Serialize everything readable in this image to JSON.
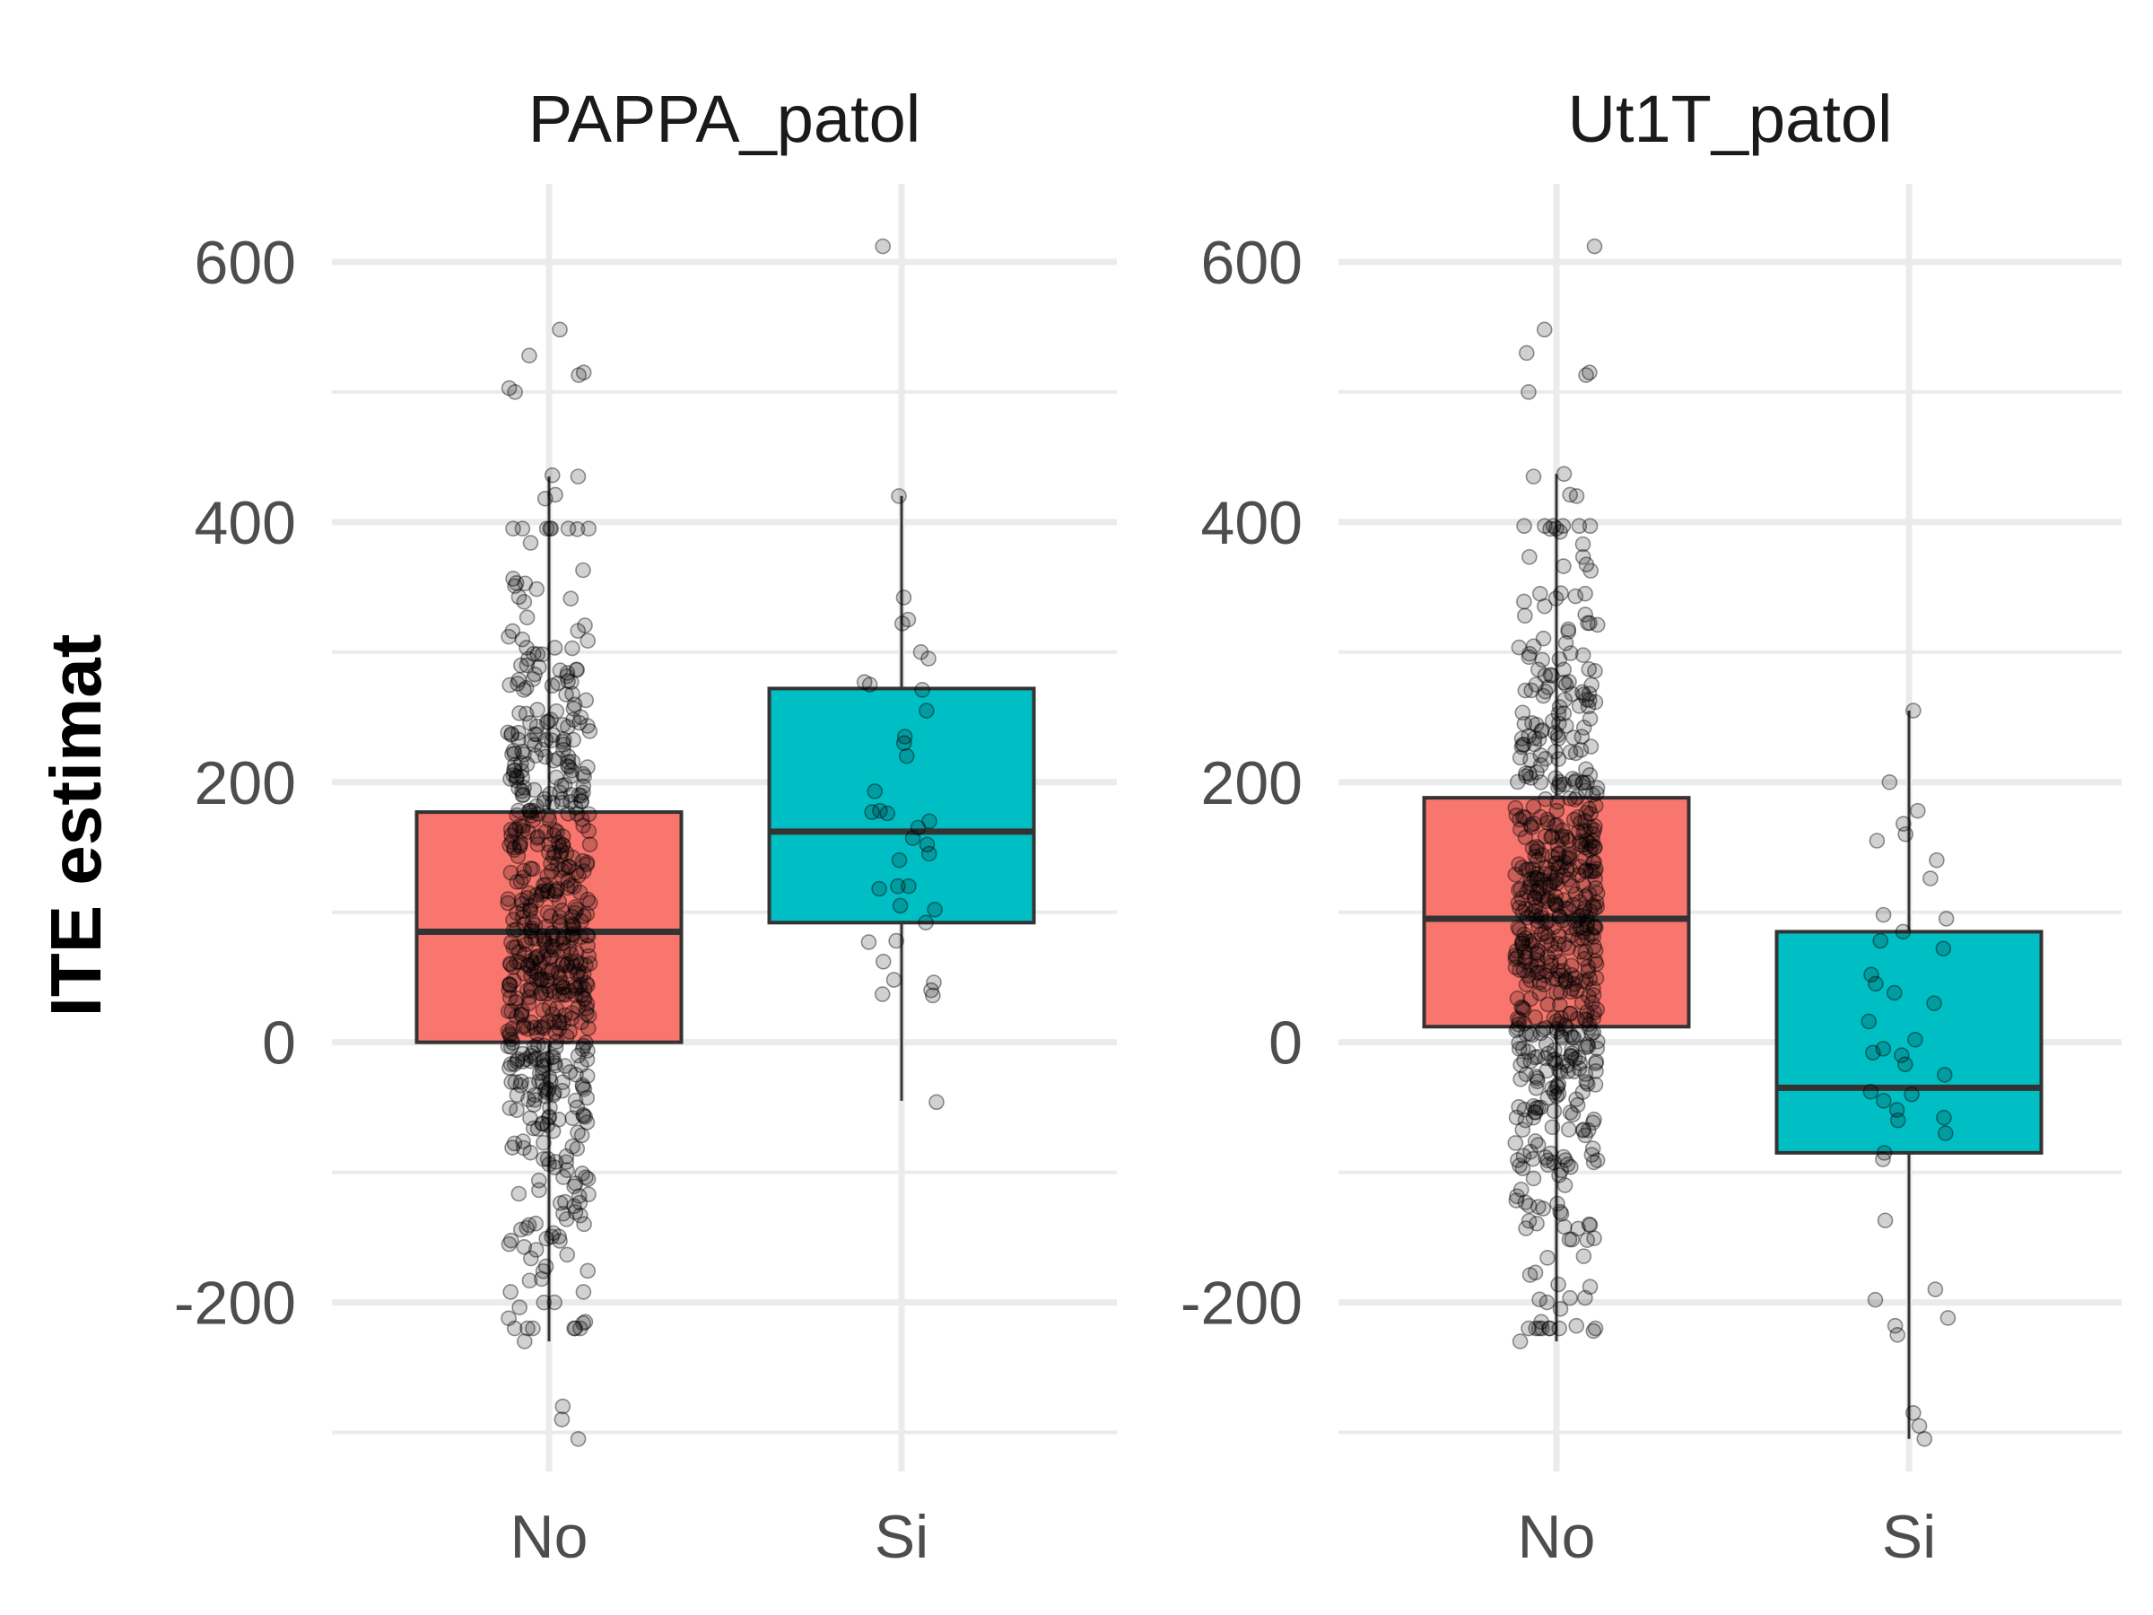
{
  "chart_data": [
    {
      "type": "box",
      "title": "PAPPA_patol",
      "ylabel": "ITE estimat",
      "ylim": [
        -330,
        660
      ],
      "yticks": [
        -200,
        0,
        200,
        400,
        600
      ],
      "categories": [
        "No",
        "Si"
      ],
      "colors": {
        "No": "#F8766D",
        "Si": "#00BFC4"
      },
      "boxes": [
        {
          "category": "No",
          "whisker_low": -230,
          "q1": 0,
          "median": 85,
          "q3": 177,
          "whisker_high": 435
        },
        {
          "category": "Si",
          "whisker_low": -45,
          "q1": 92,
          "median": 162,
          "q3": 272,
          "whisker_high": 420
        }
      ],
      "points": {
        "No_count": 600,
        "No_extremes": [
          548,
          528,
          515,
          513,
          503,
          500,
          436,
          435,
          421,
          418,
          395,
          384,
          -200,
          -215,
          -216,
          -220,
          -230,
          -280,
          -290,
          -305
        ],
        "Si": [
          612,
          420,
          342,
          325,
          322,
          300,
          295,
          277,
          275,
          271,
          255,
          235,
          230,
          220,
          193,
          178,
          177,
          176,
          170,
          165,
          157,
          152,
          145,
          140,
          120,
          120,
          118,
          105,
          102,
          92,
          78,
          77,
          62,
          48,
          46,
          40,
          37,
          36,
          -46
        ]
      }
    },
    {
      "type": "box",
      "title": "Ut1T_patol",
      "ylabel": "ITE estimat",
      "ylim": [
        -330,
        660
      ],
      "yticks": [
        -200,
        0,
        200,
        400,
        600
      ],
      "categories": [
        "No",
        "Si"
      ],
      "colors": {
        "No": "#F8766D",
        "Si": "#00BFC4"
      },
      "boxes": [
        {
          "category": "No",
          "whisker_low": -230,
          "q1": 12,
          "median": 95,
          "q3": 188,
          "whisker_high": 437
        },
        {
          "category": "Si",
          "whisker_low": -305,
          "q1": -85,
          "median": -35,
          "q3": 85,
          "whisker_high": 255
        }
      ],
      "points": {
        "No_count": 600,
        "No_extremes": [
          612,
          548,
          530,
          515,
          513,
          500,
          437,
          435,
          421,
          420,
          395,
          383,
          -200,
          -205,
          -215,
          -218,
          -222,
          -230
        ],
        "Si": [
          255,
          200,
          178,
          168,
          160,
          155,
          140,
          126,
          98,
          95,
          85,
          78,
          72,
          52,
          45,
          38,
          30,
          16,
          2,
          -5,
          -8,
          -10,
          -17,
          -25,
          -38,
          -40,
          -45,
          -52,
          -58,
          -60,
          -70,
          -85,
          -90,
          -137,
          -190,
          -198,
          -212,
          -218,
          -225,
          -285,
          -295,
          -305
        ]
      }
    }
  ]
}
